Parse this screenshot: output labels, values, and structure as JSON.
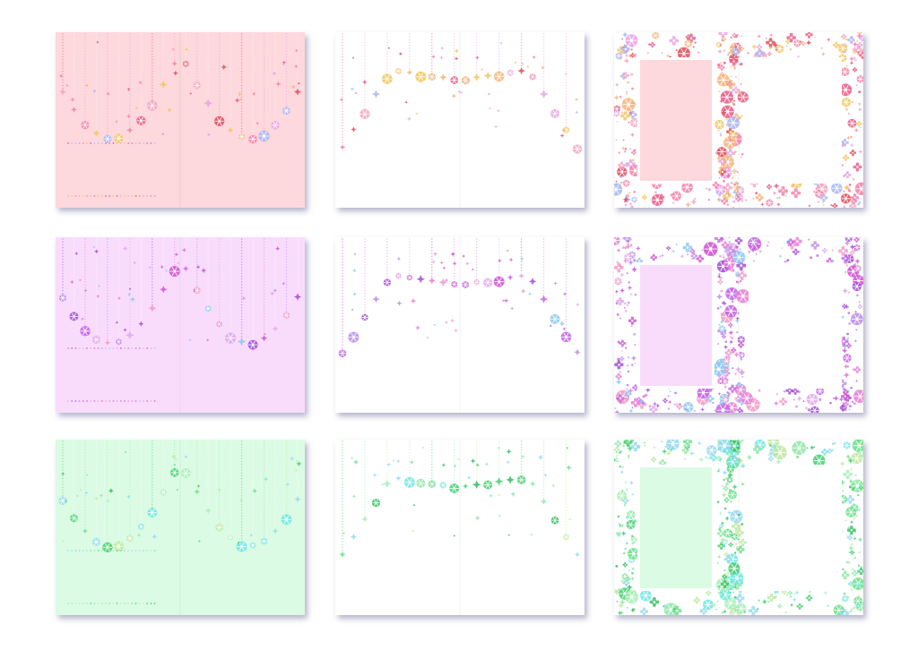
{
  "sheet": {
    "background": "#ffffff",
    "card_shadow": "#5a5a8c"
  },
  "themes": [
    {
      "id": "pink",
      "tint": "#fdd8dc",
      "accents": [
        "#ea5a86",
        "#f47ea8",
        "#f6a3c0",
        "#f4b57a",
        "#e7a3e6",
        "#f2c65c",
        "#a7b7f5",
        "#e04a58"
      ]
    },
    {
      "id": "purple",
      "tint": "#f9dcfc",
      "accents": [
        "#a24ad6",
        "#c563e8",
        "#e87ed5",
        "#f29ac6",
        "#b88de8",
        "#89c8f1",
        "#e2a8ee",
        "#d04fcf"
      ]
    },
    {
      "id": "green",
      "tint": "#dcfbe4",
      "accents": [
        "#44d070",
        "#6be08a",
        "#8fe8a6",
        "#6fe6e4",
        "#bde9a0",
        "#96d9f1",
        "#a6f0b8",
        "#2fbf5e"
      ]
    }
  ],
  "cards": [
    {
      "row": 0,
      "col": 0,
      "theme": "pink",
      "design": "garland",
      "background": "tinted"
    },
    {
      "row": 0,
      "col": 1,
      "theme": "pink",
      "design": "garland-corners",
      "background": "white"
    },
    {
      "row": 0,
      "col": 2,
      "theme": "pink",
      "design": "double-frame",
      "background": "white"
    },
    {
      "row": 1,
      "col": 0,
      "theme": "purple",
      "design": "garland",
      "background": "tinted"
    },
    {
      "row": 1,
      "col": 1,
      "theme": "purple",
      "design": "garland-corners",
      "background": "white"
    },
    {
      "row": 1,
      "col": 2,
      "theme": "purple",
      "design": "double-frame",
      "background": "white"
    },
    {
      "row": 2,
      "col": 0,
      "theme": "green",
      "design": "garland",
      "background": "tinted"
    },
    {
      "row": 2,
      "col": 1,
      "theme": "green",
      "design": "garland-corners",
      "background": "white"
    },
    {
      "row": 2,
      "col": 2,
      "theme": "green",
      "design": "double-frame",
      "background": "white"
    }
  ]
}
